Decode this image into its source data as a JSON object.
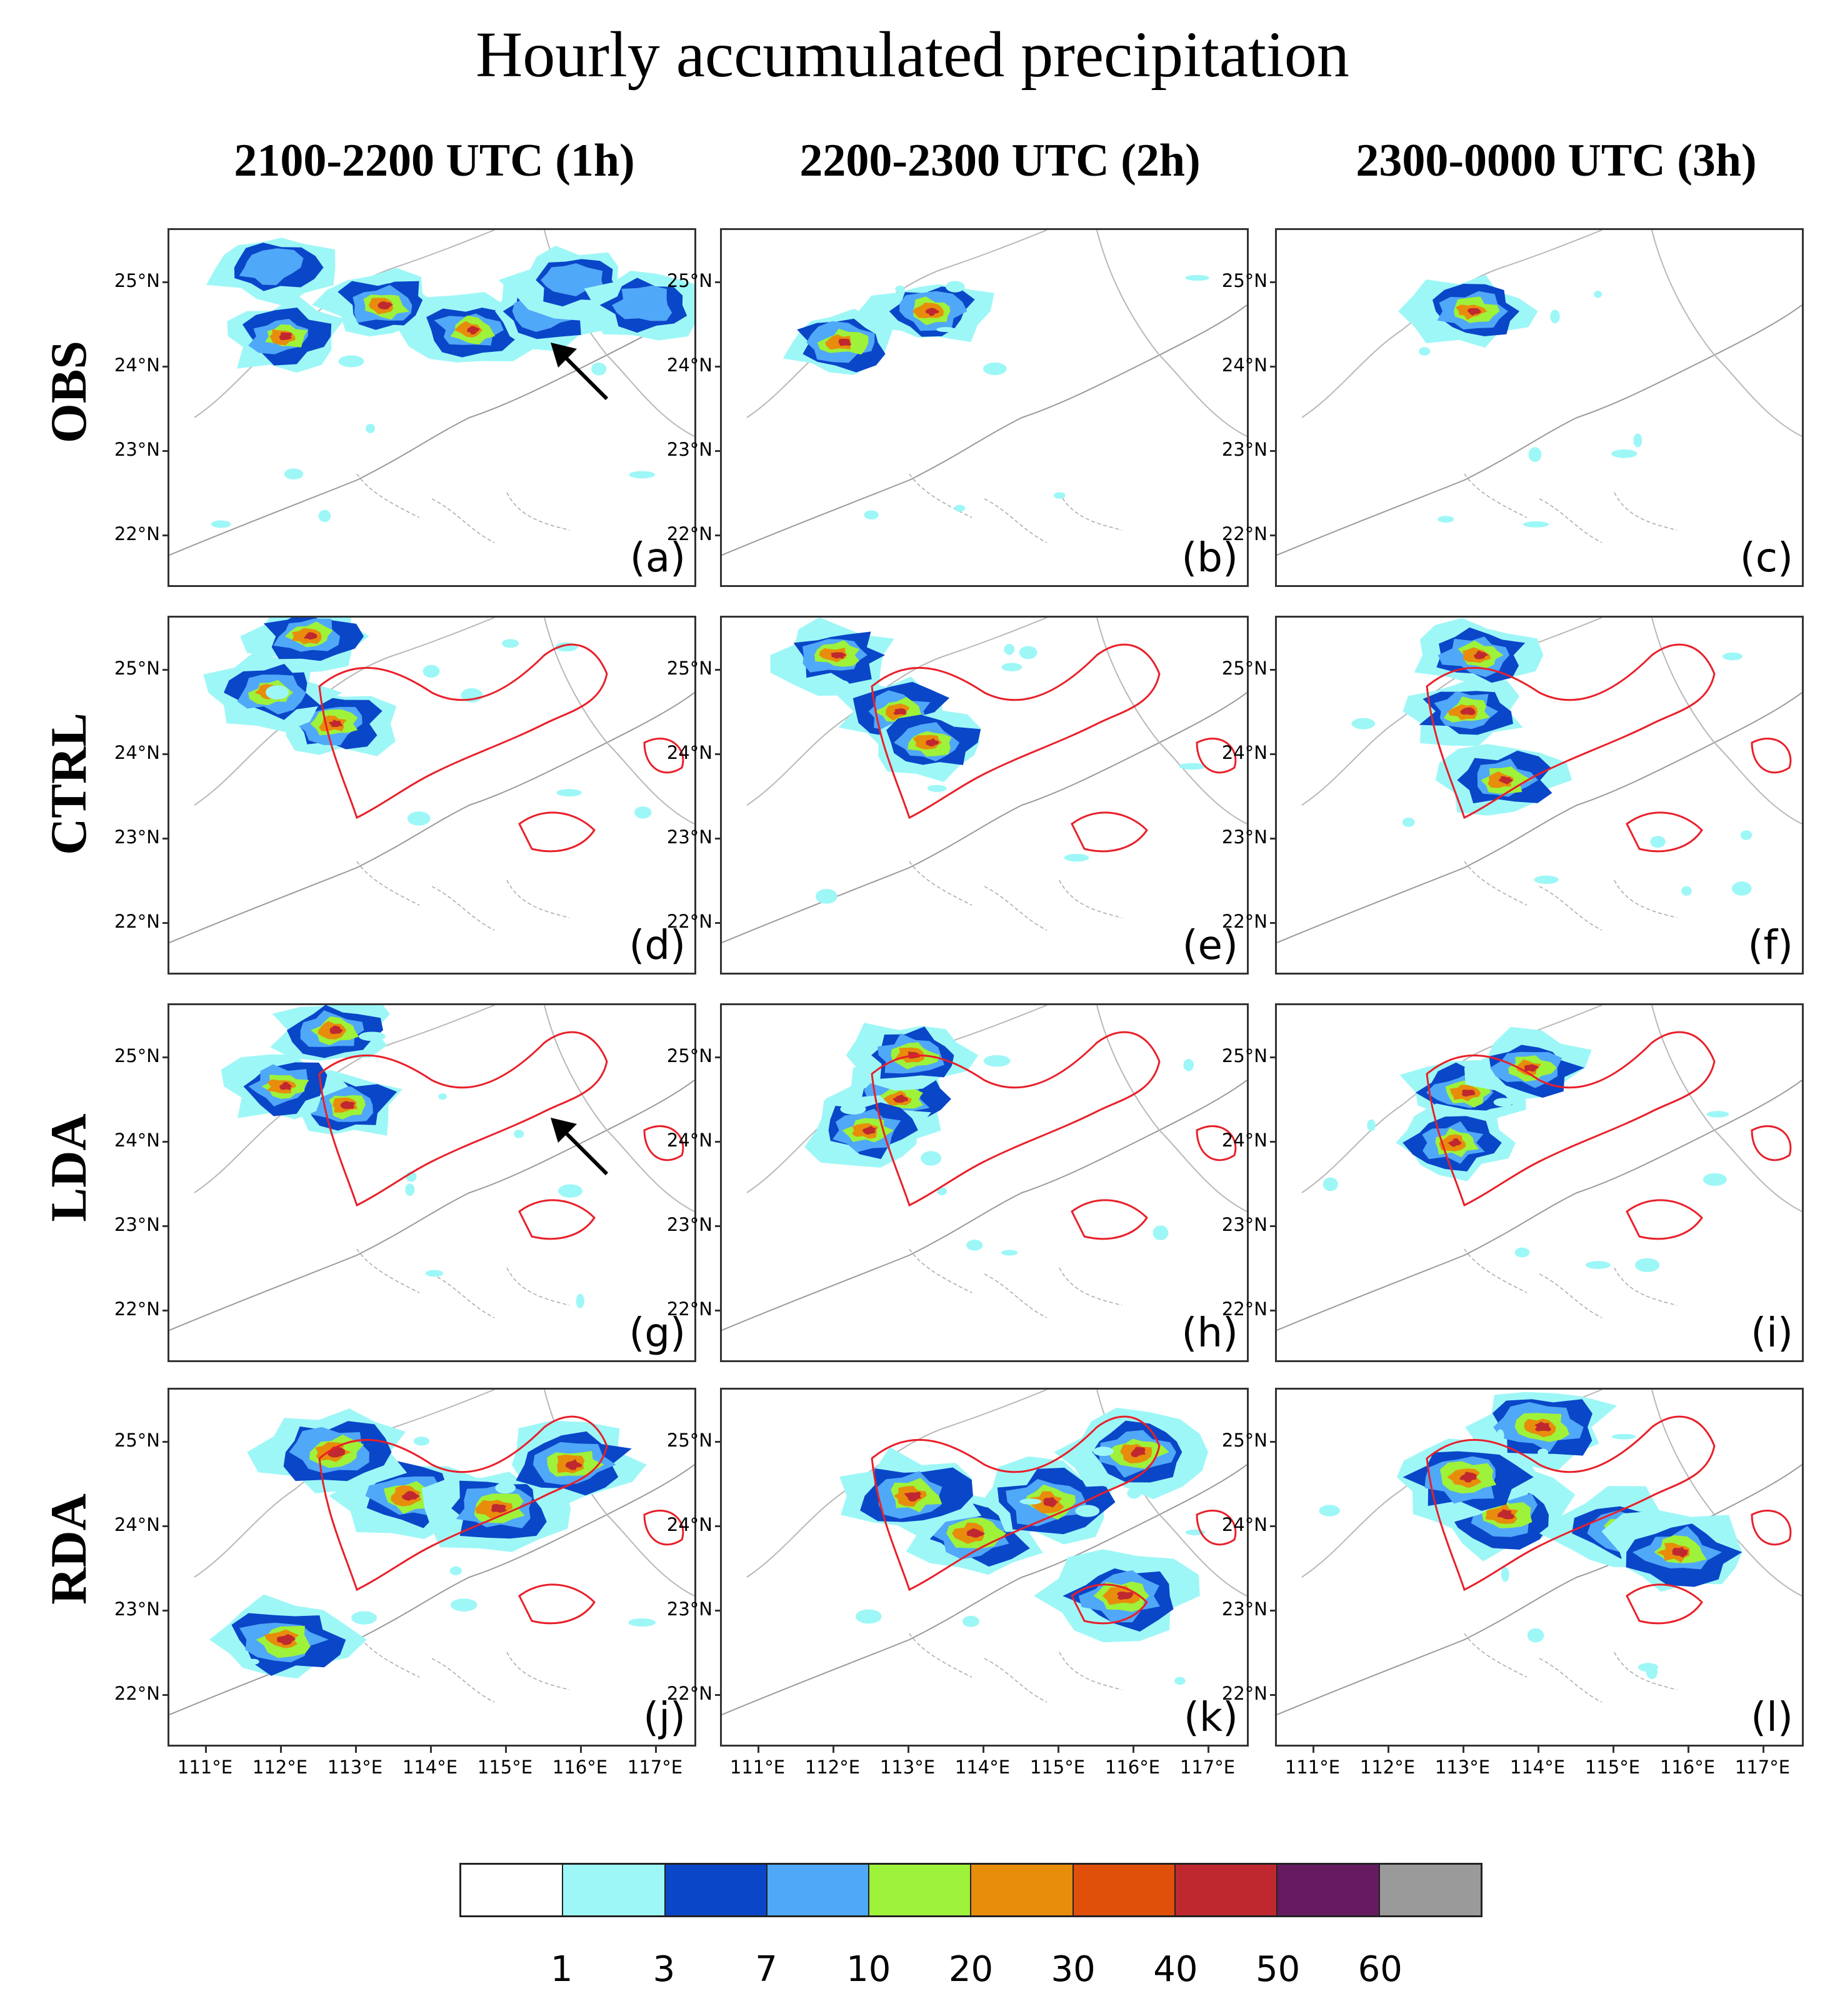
{
  "title": "Hourly accumulated precipitation",
  "columns": [
    {
      "label": "2100-2200 UTC (1h)"
    },
    {
      "label": "2200-2300 UTC (2h)"
    },
    {
      "label": "2300-0000 UTC (3h)"
    }
  ],
  "rows": [
    {
      "label": "OBS",
      "panels": [
        "(a)",
        "(b)",
        "(c)"
      ]
    },
    {
      "label": "CTRL",
      "panels": [
        "(d)",
        "(e)",
        "(f)"
      ]
    },
    {
      "label": "LDA",
      "panels": [
        "(g)",
        "(h)",
        "(i)"
      ]
    },
    {
      "label": "RDA",
      "panels": [
        "(j)",
        "(k)",
        "(l)"
      ]
    }
  ],
  "lat_labels": [
    "25°N",
    "24°N",
    "23°N",
    "22°N"
  ],
  "lon_labels": [
    "111°E",
    "112°E",
    "113°E",
    "114°E",
    "115°E",
    "116°E",
    "117°E"
  ],
  "colorbar": {
    "labels": [
      "1",
      "3",
      "7",
      "10",
      "20",
      "30",
      "40",
      "50",
      "60"
    ],
    "colors": [
      "#ffffff",
      "#9ef7f7",
      "#0a46c8",
      "#50a8f8",
      "#9ef23a",
      "#e88c0c",
      "#e0500a",
      "#c02830",
      "#661a60",
      "#9a9a9a"
    ]
  },
  "annotations": {
    "arrow_panels": [
      "(a)",
      "(g)"
    ],
    "contour_color": "#e8202a"
  }
}
